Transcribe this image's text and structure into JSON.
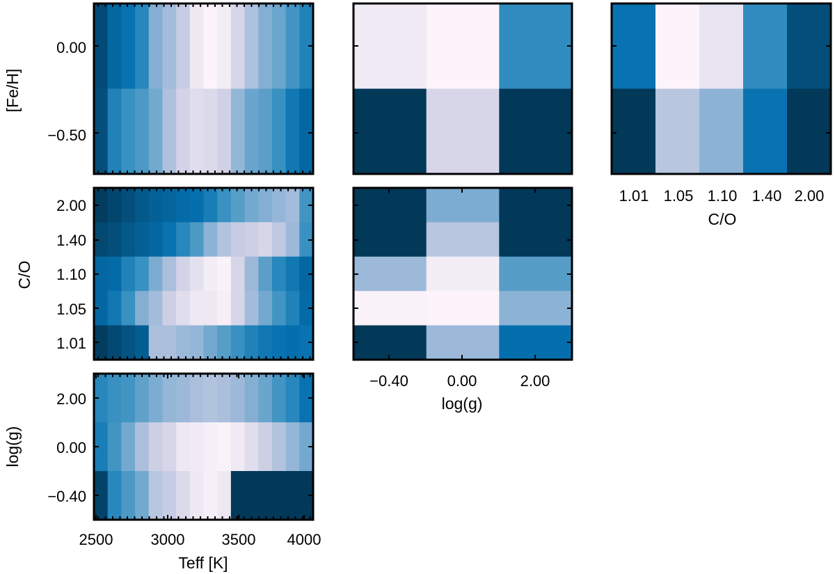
{
  "palette": [
    "#fff7fb",
    "#ece7f2",
    "#d0d1e6",
    "#a6bddb",
    "#74a9cf",
    "#3690c0",
    "#0570b0",
    "#045a8d",
    "#023858"
  ],
  "chart_data": [
    {
      "id": "teff-feh",
      "type": "heatmap",
      "xlabel": "",
      "ylabel": "[Fe/H]",
      "y_tick_labels": [
        "0.00",
        "−0.50"
      ],
      "x": [
        2500,
        2600,
        2700,
        2800,
        2900,
        3000,
        3100,
        3200,
        3300,
        3400,
        3500,
        3600,
        3700,
        3800,
        3900,
        4000
      ],
      "y": [
        0.0,
        -0.5
      ],
      "z": [
        [
          0.93,
          0.8,
          0.74,
          0.66,
          0.46,
          0.38,
          0.28,
          0.12,
          0.02,
          0.08,
          0.22,
          0.35,
          0.46,
          0.52,
          0.6,
          0.68
        ],
        [
          0.92,
          0.68,
          0.62,
          0.58,
          0.5,
          0.35,
          0.24,
          0.18,
          0.2,
          0.25,
          0.42,
          0.52,
          0.55,
          0.62,
          0.72,
          0.8
        ]
      ]
    },
    {
      "id": "logg-feh",
      "type": "heatmap",
      "xlabel": "",
      "ylabel": "",
      "x": [
        -0.4,
        0.0,
        2.0
      ],
      "y": [
        0.0,
        -0.5
      ],
      "z": [
        [
          0.1,
          0.02,
          0.64
        ],
        [
          1.0,
          0.22,
          1.0
        ]
      ]
    },
    {
      "id": "co-feh",
      "type": "heatmap",
      "xlabel": "C/O",
      "ylabel": "",
      "x_tick_labels": [
        "1.01",
        "1.05",
        "1.10",
        "1.40",
        "2.00"
      ],
      "x": [
        1.01,
        1.05,
        1.1,
        1.4,
        2.0
      ],
      "y": [
        0.0,
        -0.5
      ],
      "z": [
        [
          0.74,
          0.02,
          0.14,
          0.64,
          0.92
        ],
        [
          1.0,
          0.32,
          0.44,
          0.74,
          1.0
        ]
      ]
    },
    {
      "id": "teff-co",
      "type": "heatmap",
      "xlabel": "",
      "ylabel": "C/O",
      "y_tick_labels": [
        "2.00",
        "1.40",
        "1.10",
        "1.05",
        "1.01"
      ],
      "x": [
        2500,
        2600,
        2700,
        2800,
        2900,
        3000,
        3100,
        3200,
        3300,
        3400,
        3500,
        3600,
        3700,
        3800,
        3900,
        4000
      ],
      "y": [
        2.0,
        1.4,
        1.1,
        1.05,
        1.01
      ],
      "z": [
        [
          0.98,
          0.95,
          0.92,
          0.88,
          0.84,
          0.82,
          0.78,
          0.76,
          0.7,
          0.62,
          0.56,
          0.5,
          0.46,
          0.42,
          0.38,
          0.6
        ],
        [
          0.94,
          0.92,
          0.88,
          0.84,
          0.8,
          0.74,
          0.66,
          0.58,
          0.44,
          0.34,
          0.28,
          0.26,
          0.22,
          0.3,
          0.4,
          0.62
        ],
        [
          0.8,
          0.78,
          0.68,
          0.62,
          0.48,
          0.36,
          0.24,
          0.16,
          0.08,
          0.04,
          0.22,
          0.4,
          0.55,
          0.66,
          0.72,
          0.8
        ],
        [
          0.8,
          0.72,
          0.62,
          0.46,
          0.38,
          0.26,
          0.18,
          0.12,
          0.12,
          0.06,
          0.22,
          0.38,
          0.5,
          0.6,
          0.68,
          0.78
        ],
        [
          0.98,
          0.94,
          0.9,
          0.86,
          0.36,
          0.36,
          0.4,
          0.42,
          0.5,
          0.56,
          0.62,
          0.68,
          0.72,
          0.74,
          0.76,
          0.74
        ]
      ]
    },
    {
      "id": "logg-co",
      "type": "heatmap",
      "xlabel": "log(g)",
      "ylabel": "",
      "x_tick_labels": [
        "−0.40",
        "0.00",
        "2.00"
      ],
      "x": [
        -0.4,
        0.0,
        2.0
      ],
      "y": [
        2.0,
        1.4,
        1.1,
        1.05,
        1.01
      ],
      "z": [
        [
          1.0,
          0.48,
          1.0
        ],
        [
          1.0,
          0.32,
          1.0
        ],
        [
          0.4,
          0.08,
          0.56
        ],
        [
          0.04,
          0.02,
          0.44
        ],
        [
          1.0,
          0.4,
          0.76
        ]
      ]
    },
    {
      "id": "teff-logg",
      "type": "heatmap",
      "xlabel": "Teff [K]",
      "ylabel": "log(g)",
      "x_tick_labels": [
        "2500",
        "3000",
        "3500",
        "4000"
      ],
      "y_tick_labels": [
        "2.00",
        "0.00",
        "−0.40"
      ],
      "x": [
        2500,
        2600,
        2700,
        2800,
        2900,
        3000,
        3100,
        3200,
        3300,
        3400,
        3500,
        3600,
        3700,
        3800,
        3900,
        4000
      ],
      "y": [
        2.0,
        0.0,
        -0.4
      ],
      "z": [
        [
          0.66,
          0.62,
          0.6,
          0.54,
          0.48,
          0.42,
          0.4,
          0.36,
          0.34,
          0.36,
          0.4,
          0.46,
          0.52,
          0.6,
          0.66,
          0.74
        ],
        [
          0.7,
          0.6,
          0.5,
          0.36,
          0.26,
          0.22,
          0.12,
          0.1,
          0.06,
          0.04,
          0.1,
          0.18,
          0.26,
          0.34,
          0.42,
          0.5
        ],
        [
          0.96,
          0.66,
          0.58,
          0.5,
          0.32,
          0.28,
          0.2,
          0.12,
          0.06,
          0.12,
          1.0,
          1.0,
          1.0,
          1.0,
          1.0,
          1.0
        ]
      ]
    }
  ]
}
